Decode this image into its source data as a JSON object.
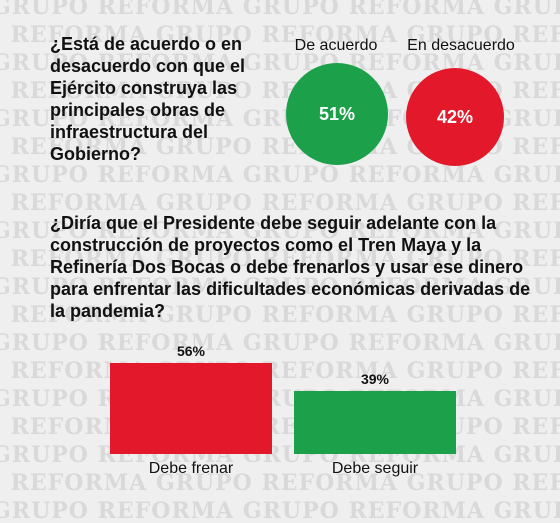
{
  "watermark_text": "GRUPO REFORMA",
  "q1": {
    "question": "¿Está de acuerdo o en desacuerdo con que el Ejército construya las principales obras de infraestructura del Gobierno?",
    "options": [
      {
        "label": "De acuerdo",
        "value_label": "51%",
        "color": "#1ca04a"
      },
      {
        "label": "En desacuerdo",
        "value_label": "42%",
        "color": "#e3192b"
      }
    ]
  },
  "q2": {
    "question": "¿Diría que el Presidente debe seguir adelante con la construcción de proyectos como el Tren Maya y la Refinería Dos Bocas o debe frenarlos y usar ese dinero para enfrentar las dificultades económicas derivadas de la pandemia?"
  },
  "chart_data": [
    {
      "type": "pie",
      "categories": [
        "De acuerdo",
        "En desacuerdo"
      ],
      "values": [
        51,
        42
      ],
      "value_labels": [
        "51%",
        "42%"
      ],
      "colors": [
        "#1ca04a",
        "#e3192b"
      ]
    },
    {
      "type": "bar",
      "categories": [
        "Debe frenar",
        "Debe seguir"
      ],
      "values": [
        56,
        39
      ],
      "value_labels": [
        "56%",
        "39%"
      ],
      "colors": [
        "#e3192b",
        "#1ca04a"
      ],
      "ylim": [
        0,
        56
      ]
    }
  ]
}
